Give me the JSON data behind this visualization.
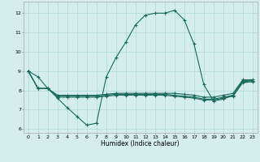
{
  "xlabel": "Humidex (Indice chaleur)",
  "bg_color": "#d4eeeb",
  "line_color": "#1a6b5a",
  "grid_color": "#b0d8d4",
  "xlim": [
    -0.5,
    23.5
  ],
  "ylim": [
    5.8,
    12.6
  ],
  "yticks": [
    6,
    7,
    8,
    9,
    10,
    11,
    12
  ],
  "xticks": [
    0,
    1,
    2,
    3,
    4,
    5,
    6,
    7,
    8,
    9,
    10,
    11,
    12,
    13,
    14,
    15,
    16,
    17,
    18,
    19,
    20,
    21,
    22,
    23
  ],
  "series": [
    {
      "x": [
        0,
        1,
        2,
        3,
        4,
        5,
        6,
        7,
        8,
        9,
        10,
        11,
        12,
        13,
        14,
        15,
        16,
        17,
        18,
        19,
        20,
        21,
        22,
        23
      ],
      "y": [
        9.0,
        8.7,
        8.1,
        7.6,
        7.1,
        6.65,
        6.2,
        6.3,
        8.7,
        9.7,
        10.5,
        11.4,
        11.9,
        12.0,
        12.0,
        12.15,
        11.65,
        10.4,
        8.3,
        7.45,
        7.55,
        7.75,
        8.5,
        8.5
      ]
    },
    {
      "x": [
        0,
        1,
        2,
        3,
        4,
        5,
        6,
        7,
        8,
        9,
        10,
        11,
        12,
        13,
        14,
        15,
        16,
        17,
        18,
        19,
        20,
        21,
        22,
        23
      ],
      "y": [
        9.0,
        8.1,
        8.1,
        7.75,
        7.75,
        7.75,
        7.75,
        7.75,
        7.8,
        7.85,
        7.85,
        7.85,
        7.85,
        7.85,
        7.85,
        7.85,
        7.8,
        7.75,
        7.65,
        7.65,
        7.75,
        7.85,
        8.55,
        8.55
      ]
    },
    {
      "x": [
        0,
        1,
        2,
        3,
        4,
        5,
        6,
        7,
        8,
        9,
        10,
        11,
        12,
        13,
        14,
        15,
        16,
        17,
        18,
        19,
        20,
        21,
        22,
        23
      ],
      "y": [
        9.0,
        8.1,
        8.1,
        7.7,
        7.7,
        7.7,
        7.7,
        7.7,
        7.75,
        7.8,
        7.8,
        7.8,
        7.8,
        7.8,
        7.8,
        7.75,
        7.7,
        7.65,
        7.55,
        7.55,
        7.65,
        7.75,
        8.45,
        8.5
      ]
    },
    {
      "x": [
        0,
        1,
        2,
        3,
        4,
        5,
        6,
        7,
        8,
        9,
        10,
        11,
        12,
        13,
        14,
        15,
        16,
        17,
        18,
        19,
        20,
        21,
        22,
        23
      ],
      "y": [
        9.0,
        8.1,
        8.1,
        7.65,
        7.65,
        7.65,
        7.65,
        7.65,
        7.7,
        7.75,
        7.75,
        7.75,
        7.75,
        7.75,
        7.75,
        7.7,
        7.65,
        7.6,
        7.5,
        7.5,
        7.6,
        7.7,
        8.4,
        8.45
      ]
    }
  ]
}
